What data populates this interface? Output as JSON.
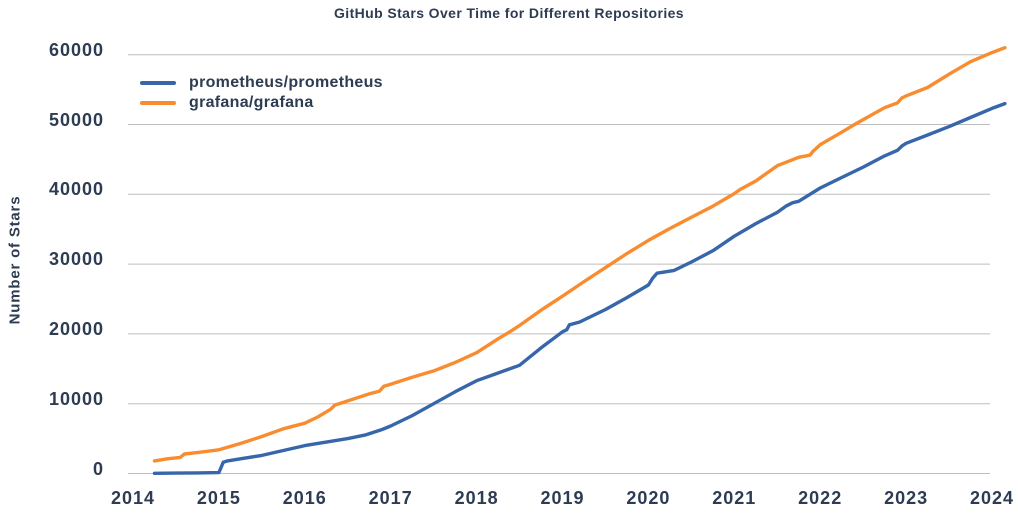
{
  "page": {
    "title": "GitHub Stars Over Time for Different Repositories"
  },
  "colors": {
    "prometheus_blue": "#3766ab",
    "grafana_orange": "#f88c2e",
    "text_navy": "#2d3c52",
    "gridline_gray": "#bdbdbd",
    "background": "#ffffff"
  },
  "legend": {
    "position": "upper-left"
  },
  "chart_data": {
    "type": "line",
    "title": "GitHub Stars Over Time for Different Repositories",
    "xlabel": "",
    "ylabel": "Number of Stars",
    "x_ticks": [
      2014,
      2015,
      2016,
      2017,
      2018,
      2019,
      2020,
      2021,
      2022,
      2023,
      2024
    ],
    "y_ticks": [
      0,
      10000,
      20000,
      30000,
      40000,
      50000,
      60000
    ],
    "xlim": [
      2013.94,
      2024.3
    ],
    "ylim": [
      0,
      60000
    ],
    "grid": "horizontal-only",
    "legend_position": "upper-left",
    "series": [
      {
        "name": "prometheus/prometheus",
        "color": "#3766ab",
        "points": [
          [
            2014.25,
            30
          ],
          [
            2014.5,
            60
          ],
          [
            2014.75,
            90
          ],
          [
            2015.0,
            130
          ],
          [
            2015.05,
            1600
          ],
          [
            2015.1,
            1800
          ],
          [
            2015.25,
            2100
          ],
          [
            2015.5,
            2600
          ],
          [
            2015.75,
            3300
          ],
          [
            2016.0,
            4000
          ],
          [
            2016.25,
            4500
          ],
          [
            2016.5,
            5000
          ],
          [
            2016.7,
            5500
          ],
          [
            2016.9,
            6300
          ],
          [
            2017.0,
            6800
          ],
          [
            2017.25,
            8300
          ],
          [
            2017.5,
            10000
          ],
          [
            2017.75,
            11700
          ],
          [
            2018.0,
            13300
          ],
          [
            2018.25,
            14400
          ],
          [
            2018.5,
            15500
          ],
          [
            2018.75,
            18000
          ],
          [
            2019.0,
            20300
          ],
          [
            2019.05,
            20600
          ],
          [
            2019.08,
            21300
          ],
          [
            2019.2,
            21700
          ],
          [
            2019.5,
            23500
          ],
          [
            2019.75,
            25200
          ],
          [
            2020.0,
            27000
          ],
          [
            2020.05,
            28000
          ],
          [
            2020.1,
            28700
          ],
          [
            2020.3,
            29100
          ],
          [
            2020.5,
            30300
          ],
          [
            2020.75,
            31900
          ],
          [
            2021.0,
            34000
          ],
          [
            2021.25,
            35800
          ],
          [
            2021.5,
            37400
          ],
          [
            2021.6,
            38300
          ],
          [
            2021.68,
            38800
          ],
          [
            2021.75,
            39000
          ],
          [
            2022.0,
            40900
          ],
          [
            2022.25,
            42400
          ],
          [
            2022.5,
            43900
          ],
          [
            2022.75,
            45500
          ],
          [
            2022.9,
            46300
          ],
          [
            2022.95,
            46900
          ],
          [
            2023.0,
            47300
          ],
          [
            2023.25,
            48500
          ],
          [
            2023.5,
            49700
          ],
          [
            2023.75,
            51000
          ],
          [
            2024.0,
            52300
          ],
          [
            2024.15,
            53000
          ]
        ]
      },
      {
        "name": "grafana/grafana",
        "color": "#f88c2e",
        "points": [
          [
            2014.25,
            1800
          ],
          [
            2014.4,
            2100
          ],
          [
            2014.55,
            2300
          ],
          [
            2014.6,
            2800
          ],
          [
            2014.75,
            3000
          ],
          [
            2015.0,
            3400
          ],
          [
            2015.25,
            4300
          ],
          [
            2015.5,
            5300
          ],
          [
            2015.75,
            6400
          ],
          [
            2016.0,
            7200
          ],
          [
            2016.15,
            8100
          ],
          [
            2016.3,
            9200
          ],
          [
            2016.35,
            9800
          ],
          [
            2016.5,
            10400
          ],
          [
            2016.75,
            11400
          ],
          [
            2016.87,
            11800
          ],
          [
            2016.92,
            12500
          ],
          [
            2017.0,
            12800
          ],
          [
            2017.25,
            13800
          ],
          [
            2017.5,
            14700
          ],
          [
            2017.75,
            15900
          ],
          [
            2018.0,
            17300
          ],
          [
            2018.25,
            19300
          ],
          [
            2018.4,
            20400
          ],
          [
            2018.5,
            21200
          ],
          [
            2018.75,
            23400
          ],
          [
            2019.0,
            25400
          ],
          [
            2019.25,
            27500
          ],
          [
            2019.5,
            29500
          ],
          [
            2019.75,
            31500
          ],
          [
            2020.0,
            33400
          ],
          [
            2020.25,
            35100
          ],
          [
            2020.5,
            36700
          ],
          [
            2020.75,
            38300
          ],
          [
            2021.0,
            40100
          ],
          [
            2021.07,
            40700
          ],
          [
            2021.25,
            41900
          ],
          [
            2021.5,
            44100
          ],
          [
            2021.75,
            45300
          ],
          [
            2021.88,
            45600
          ],
          [
            2021.92,
            46200
          ],
          [
            2022.0,
            47100
          ],
          [
            2022.25,
            48900
          ],
          [
            2022.4,
            50000
          ],
          [
            2022.5,
            50700
          ],
          [
            2022.75,
            52400
          ],
          [
            2022.9,
            53100
          ],
          [
            2022.95,
            53800
          ],
          [
            2023.0,
            54100
          ],
          [
            2023.25,
            55300
          ],
          [
            2023.5,
            57200
          ],
          [
            2023.75,
            59000
          ],
          [
            2024.0,
            60300
          ],
          [
            2024.15,
            61000
          ]
        ]
      }
    ]
  }
}
